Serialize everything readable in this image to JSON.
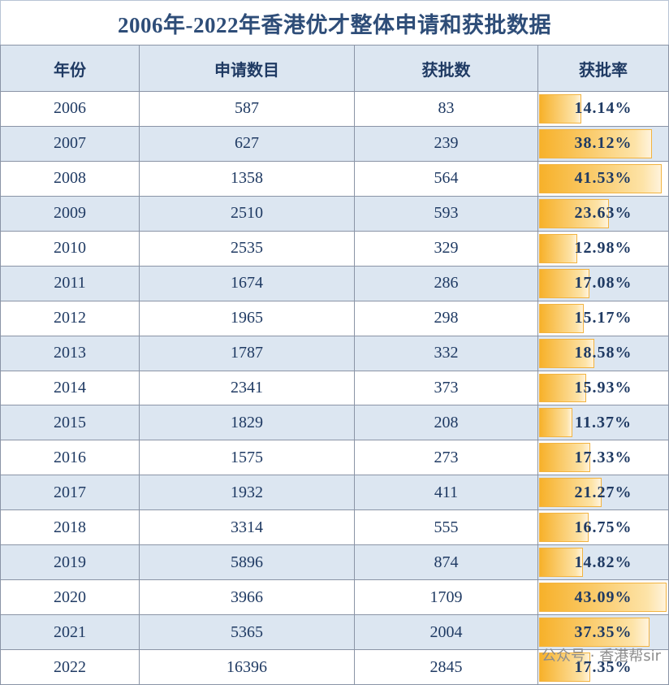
{
  "title": "2006年-2022年香港优才整体申请和获批数据",
  "table": {
    "headers": [
      "年份",
      "申请数目",
      "获批数",
      "获批率"
    ],
    "rows": [
      {
        "year": "2006",
        "applications": 587,
        "approved": 83,
        "rate": {
          "value": 14.14,
          "label": "14.14%"
        }
      },
      {
        "year": "2007",
        "applications": 627,
        "approved": 239,
        "rate": {
          "value": 38.12,
          "label": "38.12%"
        }
      },
      {
        "year": "2008",
        "applications": 1358,
        "approved": 564,
        "rate": {
          "value": 41.53,
          "label": "41.53%"
        }
      },
      {
        "year": "2009",
        "applications": 2510,
        "approved": 593,
        "rate": {
          "value": 23.63,
          "label": "23.63%"
        }
      },
      {
        "year": "2010",
        "applications": 2535,
        "approved": 329,
        "rate": {
          "value": 12.98,
          "label": "12.98%"
        }
      },
      {
        "year": "2011",
        "applications": 1674,
        "approved": 286,
        "rate": {
          "value": 17.08,
          "label": "17.08%"
        }
      },
      {
        "year": "2012",
        "applications": 1965,
        "approved": 298,
        "rate": {
          "value": 15.17,
          "label": "15.17%"
        }
      },
      {
        "year": "2013",
        "applications": 1787,
        "approved": 332,
        "rate": {
          "value": 18.58,
          "label": "18.58%"
        }
      },
      {
        "year": "2014",
        "applications": 2341,
        "approved": 373,
        "rate": {
          "value": 15.93,
          "label": "15.93%"
        }
      },
      {
        "year": "2015",
        "applications": 1829,
        "approved": 208,
        "rate": {
          "value": 11.37,
          "label": "11.37%"
        }
      },
      {
        "year": "2016",
        "applications": 1575,
        "approved": 273,
        "rate": {
          "value": 17.33,
          "label": "17.33%"
        }
      },
      {
        "year": "2017",
        "applications": 1932,
        "approved": 411,
        "rate": {
          "value": 21.27,
          "label": "21.27%"
        }
      },
      {
        "year": "2018",
        "applications": 3314,
        "approved": 555,
        "rate": {
          "value": 16.75,
          "label": "16.75%"
        }
      },
      {
        "year": "2019",
        "applications": 5896,
        "approved": 874,
        "rate": {
          "value": 14.82,
          "label": "14.82%"
        }
      },
      {
        "year": "2020",
        "applications": 3966,
        "approved": 1709,
        "rate": {
          "value": 43.09,
          "label": "43.09%"
        }
      },
      {
        "year": "2021",
        "applications": 5365,
        "approved": 2004,
        "rate": {
          "value": 37.35,
          "label": "37.35%"
        }
      },
      {
        "year": "2022",
        "applications": 16396,
        "approved": 2845,
        "rate": {
          "value": 17.35,
          "label": "17.35%"
        }
      }
    ]
  },
  "watermark": "公众号 · 香港帮sir"
}
